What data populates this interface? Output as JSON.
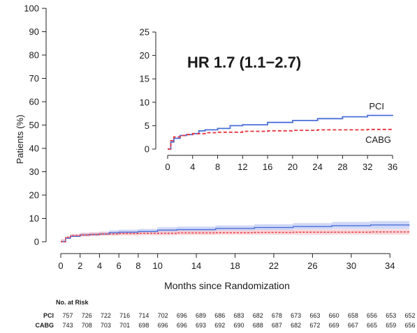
{
  "chart_data": [
    {
      "type": "line",
      "role": "main",
      "xlabel": "Months since Randomization",
      "ylabel": "Patients (%)",
      "xlim": [
        0,
        36
      ],
      "ylim": [
        0,
        100
      ],
      "xticks": [
        0,
        2,
        4,
        6,
        8,
        10,
        14,
        18,
        22,
        26,
        30,
        34
      ],
      "yticks": [
        0,
        10,
        20,
        30,
        40,
        50,
        60,
        70,
        80,
        90,
        100
      ],
      "grid": false,
      "series": [
        {
          "name": "PCI",
          "color": "#4a6fd8",
          "band_color": "#aab8ee",
          "style": "solid",
          "x": [
            0,
            0.5,
            1,
            2,
            3,
            4,
            5,
            6,
            8,
            10,
            12,
            16,
            20,
            24,
            28,
            32,
            36
          ],
          "y": [
            0,
            1.5,
            2.3,
            2.9,
            3.1,
            3.3,
            3.9,
            4.1,
            4.4,
            5.0,
            5.2,
            5.7,
            6.1,
            6.5,
            6.9,
            7.2,
            7.3
          ],
          "ci_low": [
            0,
            0.9,
            1.6,
            2.1,
            2.3,
            2.5,
            2.9,
            3.1,
            3.3,
            3.8,
            4.0,
            4.4,
            4.7,
            5.0,
            5.3,
            5.5,
            5.5
          ],
          "ci_high": [
            0,
            2.2,
            3.1,
            3.8,
            4.0,
            4.3,
            4.9,
            5.2,
            5.5,
            6.2,
            6.5,
            7.0,
            7.5,
            8.0,
            8.5,
            8.9,
            9.1
          ]
        },
        {
          "name": "CABG",
          "color": "#e8303c",
          "band_color": "#f2b3b8",
          "style": "dashed",
          "x": [
            0,
            0.5,
            1,
            2,
            3,
            4,
            6,
            8,
            12,
            16,
            20,
            24,
            28,
            32,
            36
          ],
          "y": [
            0,
            1.8,
            2.6,
            2.9,
            3.1,
            3.3,
            3.5,
            3.6,
            3.8,
            3.9,
            4.0,
            4.1,
            4.1,
            4.2,
            4.2
          ],
          "ci_low": [
            0,
            1.1,
            1.8,
            2.0,
            2.2,
            2.4,
            2.6,
            2.7,
            2.8,
            2.9,
            3.0,
            3.0,
            3.0,
            3.1,
            3.1
          ],
          "ci_high": [
            0,
            2.5,
            3.4,
            3.8,
            4.0,
            4.2,
            4.4,
            4.6,
            4.8,
            4.9,
            5.1,
            5.2,
            5.3,
            5.3,
            5.4
          ]
        }
      ]
    },
    {
      "type": "line",
      "role": "inset",
      "annotation": "HR 1.7 (1.1−2.7)",
      "xlim": [
        0,
        36
      ],
      "ylim": [
        0,
        25
      ],
      "xticks": [
        0,
        4,
        8,
        12,
        16,
        20,
        24,
        28,
        32,
        36
      ],
      "yticks": [
        0,
        5,
        10,
        15,
        20,
        25
      ],
      "grid": false,
      "labels": [
        "PCI",
        "CABG"
      ],
      "series": [
        {
          "name": "PCI",
          "color": "#4a6fd8",
          "style": "solid",
          "x": [
            0,
            0.5,
            1,
            2,
            3,
            4,
            5,
            6,
            8,
            10,
            12,
            16,
            20,
            24,
            28,
            32,
            36
          ],
          "y": [
            0,
            1.5,
            2.3,
            2.9,
            3.1,
            3.3,
            3.9,
            4.1,
            4.4,
            5.0,
            5.2,
            5.7,
            6.1,
            6.5,
            6.9,
            7.2,
            7.3
          ]
        },
        {
          "name": "CABG",
          "color": "#e8303c",
          "style": "dashed",
          "x": [
            0,
            0.5,
            1,
            2,
            3,
            4,
            6,
            8,
            12,
            16,
            20,
            24,
            28,
            32,
            36
          ],
          "y": [
            0,
            1.8,
            2.6,
            2.9,
            3.1,
            3.3,
            3.5,
            3.6,
            3.8,
            3.9,
            4.0,
            4.1,
            4.1,
            4.2,
            4.2
          ]
        }
      ]
    }
  ],
  "risk_table": {
    "title": "No. at Risk",
    "rows": [
      {
        "label": "PCI",
        "values": [
          "757",
          "726",
          "722",
          "716",
          "714",
          "702",
          "696",
          "689",
          "686",
          "683",
          "682",
          "678",
          "673",
          "663",
          "660",
          "658",
          "656",
          "653",
          "652"
        ]
      },
      {
        "label": "CABG",
        "values": [
          "743",
          "708",
          "703",
          "701",
          "698",
          "696",
          "696",
          "693",
          "692",
          "690",
          "688",
          "687",
          "682",
          "672",
          "669",
          "667",
          "665",
          "659",
          "656"
        ]
      }
    ]
  }
}
